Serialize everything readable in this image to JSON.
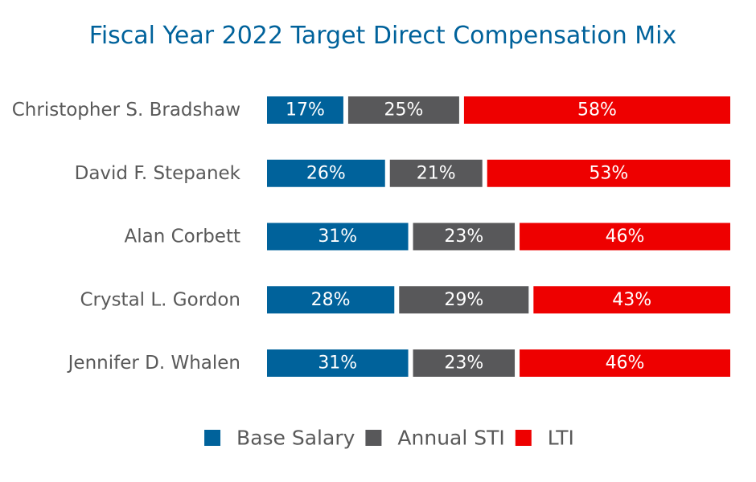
{
  "chart_data": {
    "type": "bar",
    "orientation": "horizontal",
    "stacked": true,
    "title": "Fiscal Year 2022 Target Direct Compensation Mix",
    "xlabel": "",
    "ylabel": "",
    "xlim": [
      0,
      100
    ],
    "grid": false,
    "legend_position": "bottom",
    "categories": [
      "Christopher S. Bradshaw",
      "David F. Stepanek",
      "Alan Corbett",
      "Crystal L. Gordon",
      "Jennifer D. Whalen"
    ],
    "series": [
      {
        "name": "Base Salary",
        "color": "#00629b",
        "values": [
          17,
          26,
          31,
          28,
          31
        ]
      },
      {
        "name": "Annual STI",
        "color": "#58585a",
        "values": [
          25,
          21,
          23,
          29,
          23
        ]
      },
      {
        "name": "LTI",
        "color": "#ee0000",
        "values": [
          58,
          53,
          46,
          43,
          46
        ]
      }
    ],
    "data_label_suffix": "%"
  },
  "colors": {
    "title": "#00629b",
    "category_text": "#595959",
    "legend_text": "#595959",
    "data_label_text": "#ffffff",
    "background": "#ffffff"
  }
}
